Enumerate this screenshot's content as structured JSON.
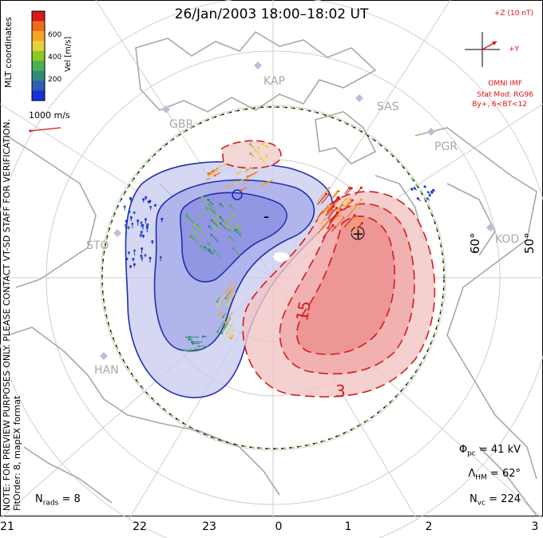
{
  "title": "26/Jan/2003 18:00–18:02 UT",
  "side_note": {
    "line1": "NOTE: FOR PREVIEW PURPOSES ONLY. PLEASE CONTACT VT-SD STAFF FOR VERIFICATION.",
    "line2": "FitOrder: 8, mapEX format"
  },
  "coords_label": "MLT coordinates",
  "colorbar": {
    "unit": "Vel [m/s]",
    "ticks": [
      "600",
      "400",
      "200"
    ],
    "colors": [
      "#d81a1a",
      "#f06a1a",
      "#f5a623",
      "#e6d33a",
      "#8ac926",
      "#4caf50",
      "#2e8b7a",
      "#2f5fb0",
      "#1a2fd6"
    ]
  },
  "velocity_ref": "1000 m/s",
  "imf": {
    "bz_label": "+Z (10 nT)",
    "by_label": "+Y",
    "source": "OMNI IMF",
    "stat_mod": "Stat Mod: RG96",
    "condition": "By+, 6<BT<12"
  },
  "stations": [
    "KAP",
    "SAS",
    "GBR",
    "PGR",
    "STO",
    "KOD",
    "HAN"
  ],
  "latitude_labels": [
    "60°",
    "50°"
  ],
  "hour_labels": [
    "21",
    "22",
    "23",
    "0",
    "1",
    "2",
    "3"
  ],
  "contour_labels": [
    "-",
    "+",
    "15",
    "3"
  ],
  "stats": {
    "phi_pc": {
      "label": "Φ",
      "sub": "pc",
      "value": " = 41 kV"
    },
    "lambda_hm": {
      "label": "Λ",
      "sub": "HM",
      "value": " = 62°"
    },
    "n_vc": {
      "label": "N",
      "sub": "vc",
      "value": " = 224"
    },
    "n_rads": {
      "label": "N",
      "sub": "rads",
      "value": " = 8"
    }
  },
  "colors": {
    "negative_cell": "#1f2fb0",
    "positive_cell": "#d81a1a",
    "hmb": "#7ec23a",
    "grid": "#bdbdbd",
    "coast": "#a8a8a8"
  }
}
